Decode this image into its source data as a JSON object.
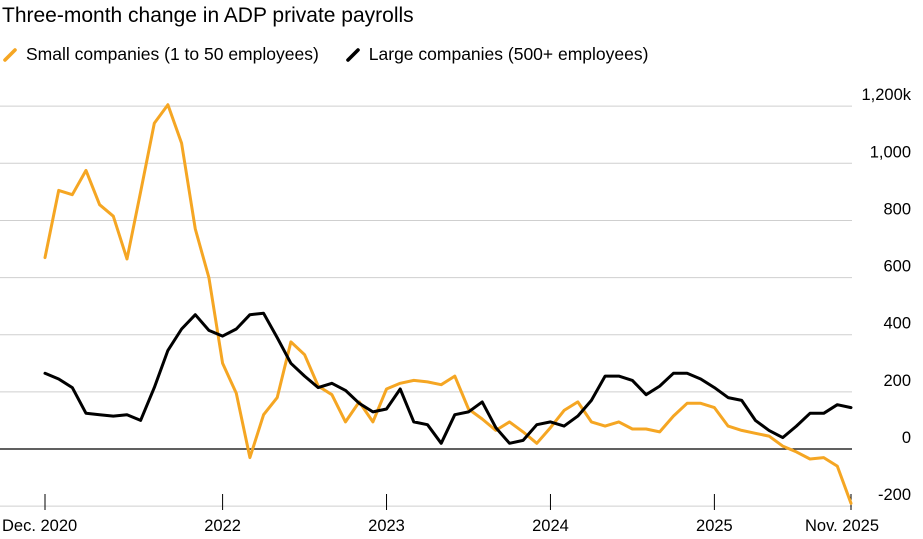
{
  "chart_data": {
    "type": "line",
    "title": "Three-month change in ADP private payrolls",
    "xlabel": "",
    "ylabel": "",
    "x_tick_labels": [
      "Dec. 2020",
      "2022",
      "2023",
      "2024",
      "2025",
      "Nov. 2025"
    ],
    "y_ticks": [
      -200,
      0,
      200,
      400,
      600,
      800,
      1000,
      1200
    ],
    "y_tick_labels": [
      "-200",
      "0",
      "200",
      "400",
      "600",
      "800",
      "1,000",
      "1,200k"
    ],
    "ylim": [
      -200,
      1200
    ],
    "grid": "horizontal",
    "legend_placement": "top-left",
    "series": [
      {
        "name": "Small companies (1 to 50 employees)",
        "color": "#f5a623",
        "values": [
          670,
          905,
          890,
          975,
          855,
          815,
          665,
          900,
          1140,
          1205,
          1070,
          770,
          600,
          300,
          195,
          -30,
          120,
          180,
          375,
          330,
          220,
          190,
          95,
          165,
          95,
          210,
          230,
          240,
          235,
          225,
          255,
          140,
          105,
          65,
          95,
          60,
          20,
          75,
          135,
          165,
          95,
          80,
          95,
          70,
          70,
          60,
          115,
          160,
          160,
          145,
          80,
          65,
          55,
          45,
          10,
          -10,
          -35,
          -30,
          -60,
          -190
        ]
      },
      {
        "name": "Large companies (500+ employees)",
        "color": "#000000",
        "values": [
          265,
          245,
          215,
          125,
          120,
          115,
          120,
          100,
          215,
          345,
          420,
          470,
          415,
          395,
          420,
          470,
          475,
          390,
          300,
          255,
          215,
          230,
          205,
          160,
          130,
          140,
          210,
          95,
          85,
          20,
          120,
          130,
          165,
          75,
          20,
          30,
          85,
          95,
          80,
          115,
          170,
          255,
          255,
          240,
          190,
          220,
          265,
          265,
          245,
          215,
          180,
          170,
          100,
          65,
          40,
          80,
          125,
          125,
          155,
          145
        ]
      }
    ]
  }
}
